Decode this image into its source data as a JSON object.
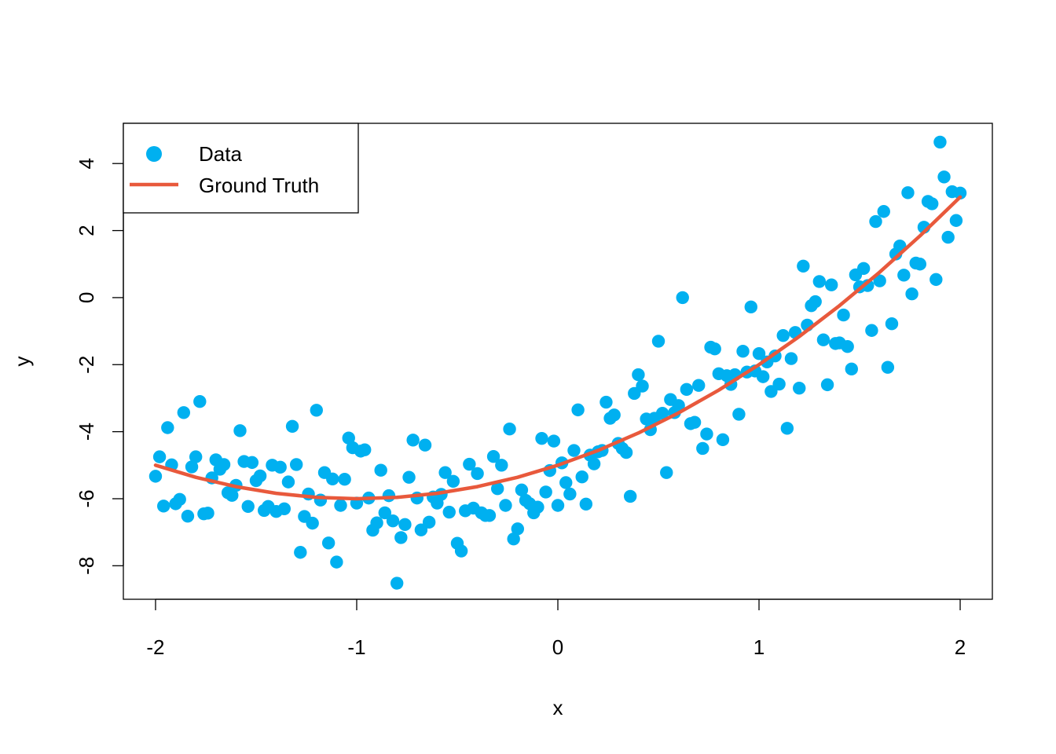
{
  "chart_data": {
    "type": "scatter",
    "title": "",
    "xlabel": "x",
    "ylabel": "y",
    "xlim": [
      -2.16,
      2.16
    ],
    "ylim": [
      -9.0,
      5.2
    ],
    "xticks": [
      -2,
      -1,
      0,
      1,
      2
    ],
    "xtick_labels": [
      "-2",
      "-1",
      "0",
      "1",
      "2"
    ],
    "yticks": [
      -8,
      -6,
      -4,
      -2,
      0,
      2,
      4
    ],
    "ytick_labels": [
      "-8",
      "-6",
      "-4",
      "-2",
      "0",
      "2",
      "4"
    ],
    "grid": false,
    "legend_position": "top-left",
    "legend": [
      {
        "label": "Data",
        "kind": "point",
        "color": "#00b0f0"
      },
      {
        "label": "Ground Truth",
        "kind": "line",
        "color": "#e8593c"
      }
    ],
    "ground_truth": {
      "name": "Ground Truth",
      "color": "#e8593c",
      "x": [
        -2.0,
        -1.8,
        -1.6,
        -1.4,
        -1.2,
        -1.0,
        -0.8,
        -0.6,
        -0.4,
        -0.2,
        0.0,
        0.2,
        0.4,
        0.6,
        0.8,
        1.0,
        1.2,
        1.4,
        1.6,
        1.8,
        2.0
      ],
      "y": [
        -5.0,
        -5.36,
        -5.64,
        -5.84,
        -5.96,
        -6.0,
        -5.96,
        -5.84,
        -5.64,
        -5.36,
        -5.0,
        -4.56,
        -4.04,
        -3.44,
        -2.76,
        -2.0,
        -1.16,
        -0.24,
        0.76,
        1.84,
        3.0
      ]
    },
    "series": [
      {
        "name": "Data",
        "color": "#00b0f0",
        "points": [
          [
            -2.0,
            -5.33
          ],
          [
            -1.98,
            -4.75
          ],
          [
            -1.96,
            -6.22
          ],
          [
            -1.94,
            -3.88
          ],
          [
            -1.92,
            -4.99
          ],
          [
            -1.9,
            -6.15
          ],
          [
            -1.88,
            -6.02
          ],
          [
            -1.86,
            -3.43
          ],
          [
            -1.84,
            -6.52
          ],
          [
            -1.82,
            -5.05
          ],
          [
            -1.8,
            -4.75
          ],
          [
            -1.78,
            -3.1
          ],
          [
            -1.76,
            -6.45
          ],
          [
            -1.74,
            -6.43
          ],
          [
            -1.72,
            -5.38
          ],
          [
            -1.7,
            -4.84
          ],
          [
            -1.68,
            -5.12
          ],
          [
            -1.66,
            -4.98
          ],
          [
            -1.64,
            -5.82
          ],
          [
            -1.62,
            -5.9
          ],
          [
            -1.6,
            -5.6
          ],
          [
            -1.58,
            -3.97
          ],
          [
            -1.56,
            -4.89
          ],
          [
            -1.54,
            -6.23
          ],
          [
            -1.52,
            -4.92
          ],
          [
            -1.5,
            -5.46
          ],
          [
            -1.48,
            -5.32
          ],
          [
            -1.46,
            -6.35
          ],
          [
            -1.44,
            -6.23
          ],
          [
            -1.42,
            -5.0
          ],
          [
            -1.4,
            -6.38
          ],
          [
            -1.38,
            -5.06
          ],
          [
            -1.36,
            -6.3
          ],
          [
            -1.34,
            -5.5
          ],
          [
            -1.32,
            -3.84
          ],
          [
            -1.3,
            -4.98
          ],
          [
            -1.28,
            -7.6
          ],
          [
            -1.26,
            -6.53
          ],
          [
            -1.24,
            -5.86
          ],
          [
            -1.22,
            -6.73
          ],
          [
            -1.2,
            -3.36
          ],
          [
            -1.18,
            -6.04
          ],
          [
            -1.16,
            -5.22
          ],
          [
            -1.14,
            -7.32
          ],
          [
            -1.12,
            -5.41
          ],
          [
            -1.1,
            -7.89
          ],
          [
            -1.08,
            -6.2
          ],
          [
            -1.06,
            -5.42
          ],
          [
            -1.04,
            -4.19
          ],
          [
            -1.02,
            -4.48
          ],
          [
            -1.0,
            -6.13
          ],
          [
            -0.98,
            -4.58
          ],
          [
            -0.96,
            -4.54
          ],
          [
            -0.94,
            -5.98
          ],
          [
            -0.92,
            -6.94
          ],
          [
            -0.9,
            -6.72
          ],
          [
            -0.88,
            -5.15
          ],
          [
            -0.86,
            -6.42
          ],
          [
            -0.84,
            -5.91
          ],
          [
            -0.82,
            -6.66
          ],
          [
            -0.8,
            -8.52
          ],
          [
            -0.78,
            -7.16
          ],
          [
            -0.76,
            -6.77
          ],
          [
            -0.74,
            -5.36
          ],
          [
            -0.72,
            -4.25
          ],
          [
            -0.7,
            -5.98
          ],
          [
            -0.68,
            -6.93
          ],
          [
            -0.66,
            -4.4
          ],
          [
            -0.64,
            -6.7
          ],
          [
            -0.62,
            -5.95
          ],
          [
            -0.6,
            -6.13
          ],
          [
            -0.58,
            -5.87
          ],
          [
            -0.56,
            -5.22
          ],
          [
            -0.54,
            -6.4
          ],
          [
            -0.52,
            -5.48
          ],
          [
            -0.5,
            -7.33
          ],
          [
            -0.48,
            -7.56
          ],
          [
            -0.46,
            -6.36
          ],
          [
            -0.44,
            -4.97
          ],
          [
            -0.42,
            -6.28
          ],
          [
            -0.4,
            -5.25
          ],
          [
            -0.38,
            -6.42
          ],
          [
            -0.36,
            -6.5
          ],
          [
            -0.34,
            -6.5
          ],
          [
            -0.32,
            -4.74
          ],
          [
            -0.3,
            -5.7
          ],
          [
            -0.28,
            -5.0
          ],
          [
            -0.26,
            -6.2
          ],
          [
            -0.24,
            -3.92
          ],
          [
            -0.22,
            -7.2
          ],
          [
            -0.2,
            -6.9
          ],
          [
            -0.18,
            -5.74
          ],
          [
            -0.16,
            -6.05
          ],
          [
            -0.14,
            -6.15
          ],
          [
            -0.12,
            -6.42
          ],
          [
            -0.1,
            -6.25
          ],
          [
            -0.08,
            -4.2
          ],
          [
            -0.06,
            -5.8
          ],
          [
            -0.04,
            -5.16
          ],
          [
            -0.02,
            -4.28
          ],
          [
            0.0,
            -6.2
          ],
          [
            0.02,
            -4.93
          ],
          [
            0.04,
            -5.52
          ],
          [
            0.06,
            -5.86
          ],
          [
            0.08,
            -4.56
          ],
          [
            0.1,
            -3.35
          ],
          [
            0.12,
            -5.35
          ],
          [
            0.14,
            -6.16
          ],
          [
            0.16,
            -4.7
          ],
          [
            0.18,
            -4.96
          ],
          [
            0.2,
            -4.6
          ],
          [
            0.22,
            -4.56
          ],
          [
            0.24,
            -3.12
          ],
          [
            0.26,
            -3.6
          ],
          [
            0.28,
            -3.5
          ],
          [
            0.3,
            -4.35
          ],
          [
            0.32,
            -4.5
          ],
          [
            0.34,
            -4.62
          ],
          [
            0.36,
            -5.93
          ],
          [
            0.38,
            -2.86
          ],
          [
            0.4,
            -2.3
          ],
          [
            0.42,
            -2.64
          ],
          [
            0.44,
            -3.62
          ],
          [
            0.46,
            -3.94
          ],
          [
            0.48,
            -3.6
          ],
          [
            0.5,
            -1.3
          ],
          [
            0.52,
            -3.45
          ],
          [
            0.54,
            -5.22
          ],
          [
            0.56,
            -3.04
          ],
          [
            0.58,
            -3.43
          ],
          [
            0.6,
            -3.22
          ],
          [
            0.62,
            0.0
          ],
          [
            0.64,
            -2.74
          ],
          [
            0.66,
            -3.76
          ],
          [
            0.68,
            -3.72
          ],
          [
            0.7,
            -2.62
          ],
          [
            0.72,
            -4.5
          ],
          [
            0.74,
            -4.07
          ],
          [
            0.76,
            -1.48
          ],
          [
            0.78,
            -1.53
          ],
          [
            0.8,
            -2.27
          ],
          [
            0.82,
            -4.24
          ],
          [
            0.84,
            -2.33
          ],
          [
            0.86,
            -2.59
          ],
          [
            0.88,
            -2.3
          ],
          [
            0.9,
            -3.48
          ],
          [
            0.92,
            -1.6
          ],
          [
            0.94,
            -2.22
          ],
          [
            0.96,
            -0.28
          ],
          [
            0.98,
            -2.19
          ],
          [
            1.0,
            -1.67
          ],
          [
            1.02,
            -2.36
          ],
          [
            1.04,
            -1.92
          ],
          [
            1.06,
            -2.8
          ],
          [
            1.08,
            -1.74
          ],
          [
            1.1,
            -2.58
          ],
          [
            1.12,
            -1.13
          ],
          [
            1.14,
            -3.9
          ],
          [
            1.16,
            -1.82
          ],
          [
            1.18,
            -1.04
          ],
          [
            1.2,
            -2.7
          ],
          [
            1.22,
            0.94
          ],
          [
            1.24,
            -0.82
          ],
          [
            1.26,
            -0.24
          ],
          [
            1.28,
            -0.12
          ],
          [
            1.3,
            0.48
          ],
          [
            1.32,
            -1.26
          ],
          [
            1.34,
            -2.6
          ],
          [
            1.36,
            0.38
          ],
          [
            1.38,
            -1.37
          ],
          [
            1.4,
            -1.35
          ],
          [
            1.42,
            -0.52
          ],
          [
            1.44,
            -1.46
          ],
          [
            1.46,
            -2.13
          ],
          [
            1.48,
            0.68
          ],
          [
            1.5,
            0.32
          ],
          [
            1.52,
            0.87
          ],
          [
            1.54,
            0.36
          ],
          [
            1.56,
            -0.98
          ],
          [
            1.58,
            2.27
          ],
          [
            1.6,
            0.5
          ],
          [
            1.62,
            2.57
          ],
          [
            1.64,
            -2.08
          ],
          [
            1.66,
            -0.78
          ],
          [
            1.68,
            1.3
          ],
          [
            1.7,
            1.54
          ],
          [
            1.72,
            0.67
          ],
          [
            1.74,
            3.13
          ],
          [
            1.76,
            0.11
          ],
          [
            1.78,
            1.03
          ],
          [
            1.8,
            1.0
          ],
          [
            1.82,
            2.1
          ],
          [
            1.84,
            2.87
          ],
          [
            1.86,
            2.8
          ],
          [
            1.88,
            0.54
          ],
          [
            1.9,
            4.64
          ],
          [
            1.92,
            3.6
          ],
          [
            1.94,
            1.8
          ],
          [
            1.96,
            3.16
          ],
          [
            1.98,
            2.3
          ],
          [
            2.0,
            3.12
          ]
        ]
      }
    ]
  }
}
